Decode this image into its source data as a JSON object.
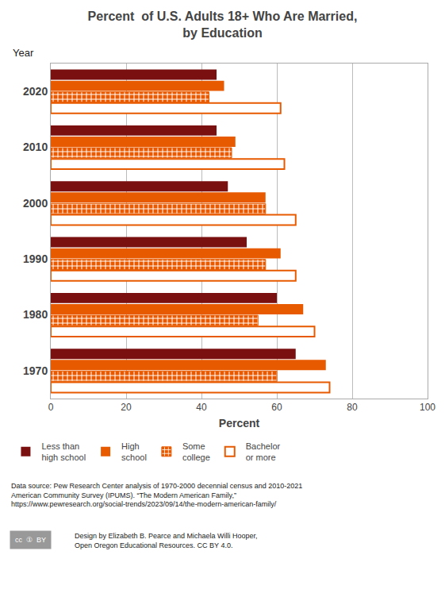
{
  "chart_data": {
    "type": "bar",
    "orientation": "horizontal",
    "title": "Percent  of U.S. Adults 18+ Who Are Married,\nby Education",
    "xlabel": "Percent",
    "ylabel": "Year",
    "categories": [
      1970,
      1980,
      1990,
      2000,
      2010,
      2020
    ],
    "series": [
      {
        "name": "Less than\nhigh school",
        "color": "#7B1010",
        "marker": "solid",
        "values": [
          65,
          60,
          52,
          47,
          44,
          44
        ]
      },
      {
        "name": "High\nschool",
        "color": "#E85A00",
        "marker": "solid",
        "values": [
          73,
          67,
          61,
          57,
          49,
          46
        ]
      },
      {
        "name": "Some\ncollege",
        "color": "#E85A00",
        "marker": "hatch",
        "values": [
          60,
          55,
          57,
          57,
          48,
          42
        ]
      },
      {
        "name": "Bachelor\nor more",
        "color": "#E85A00",
        "marker": "outline",
        "values": [
          74,
          70,
          65,
          65,
          62,
          61
        ]
      }
    ],
    "xlim": [
      0,
      100
    ],
    "xticks": [
      0,
      20,
      40,
      60,
      80,
      100
    ],
    "grid": true,
    "legend": "bottom",
    "annotations": [
      "Data source: Pew Research Center analysis of 1970-2000 decennial census and 2010-2021\nAmerican Community Survey (IPUMS). “The Modern American Family,”\nhttps://www.pewresearch.org/social-trends/2023/09/14/the-modern-american-family/",
      "Design by Elizabeth B. Pearce and Michaela Willi Hooper,\nOpen Oregon Educational Resources. CC BY 4.0.",
      "cc  ①  BY"
    ]
  }
}
